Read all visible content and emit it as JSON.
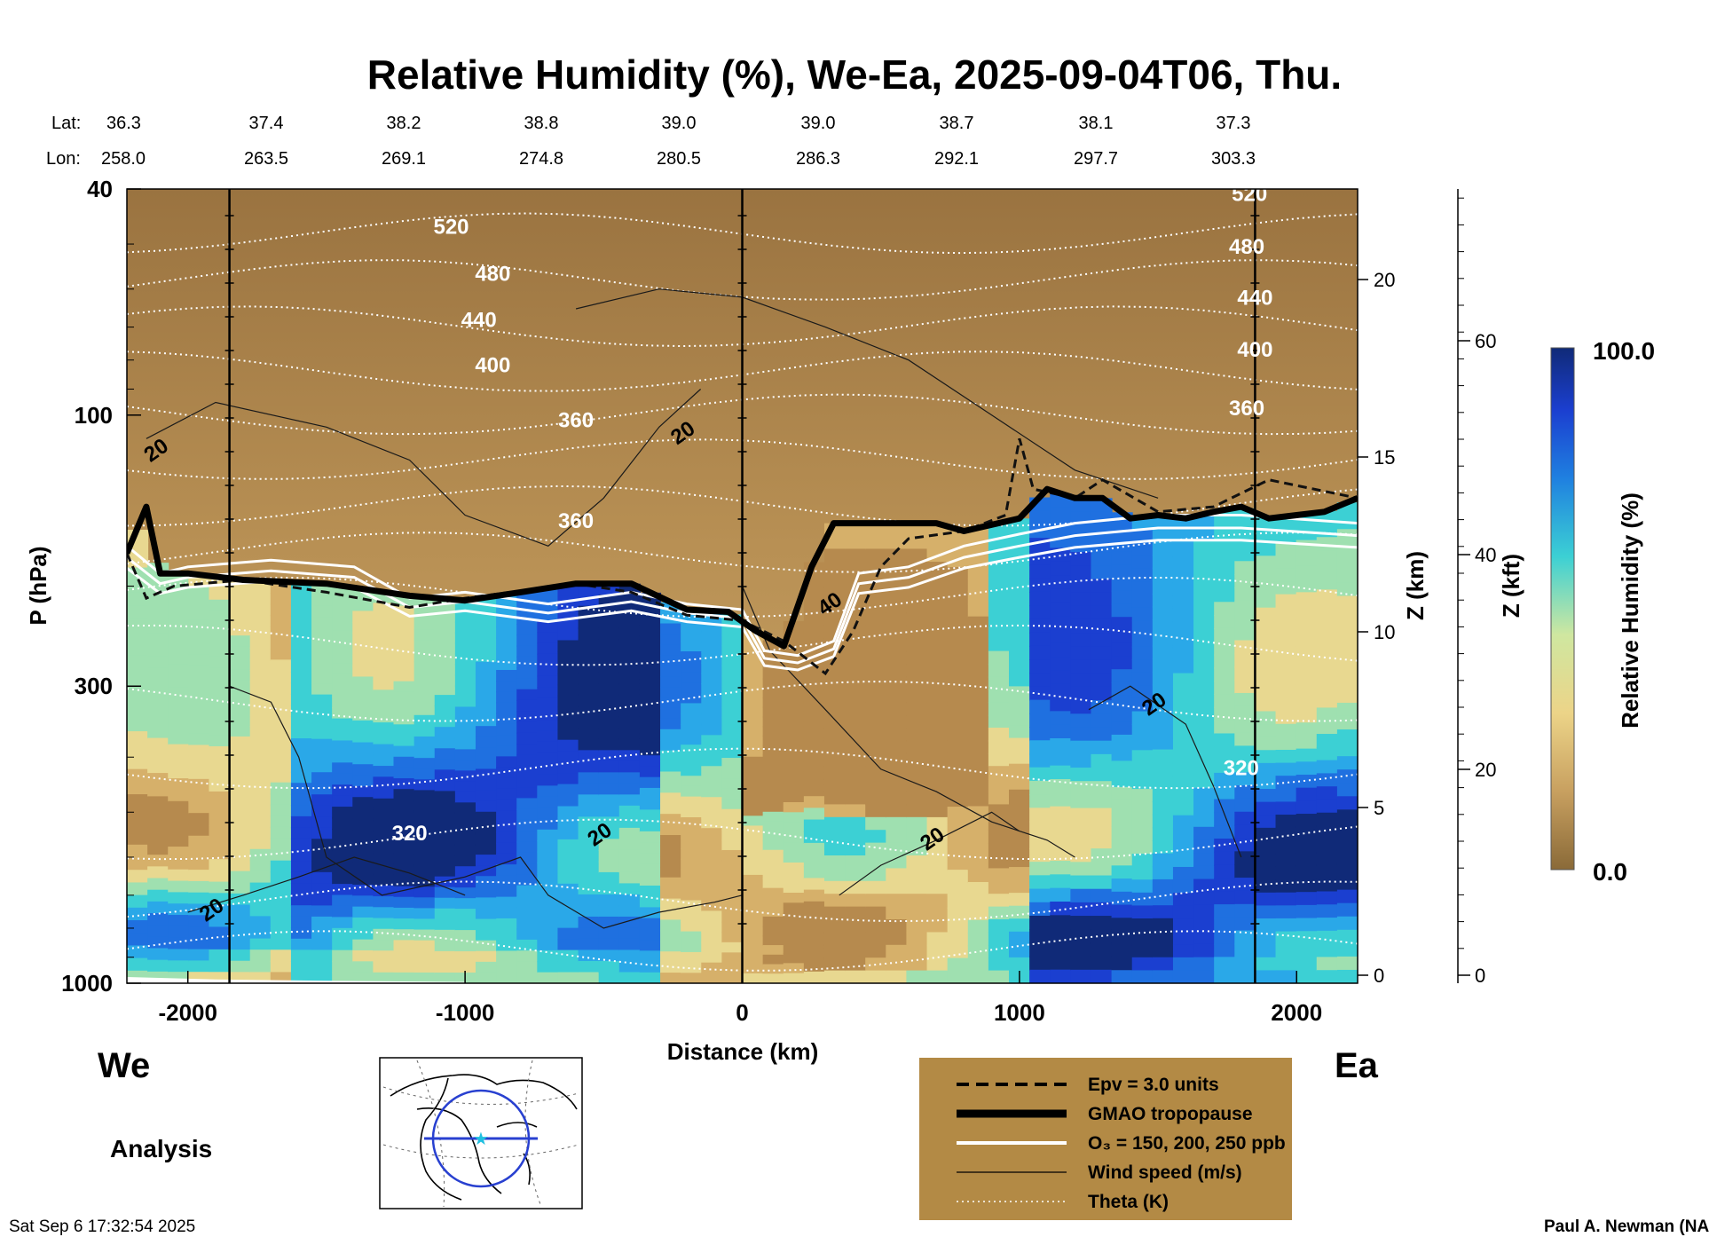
{
  "chart_data": {
    "type": "heatmap",
    "title": "Relative Humidity (%), We-Ea, 2025-09-04T06, Thu.",
    "xlabel": "Distance (km)",
    "ylabel": "P (hPa)",
    "xlim": [
      -2220,
      2220
    ],
    "ylim": [
      1000,
      40
    ],
    "yscale": "log",
    "x_ticks": [
      "-2000",
      "-1000",
      "0",
      "1000",
      "2000"
    ],
    "y_ticks": [
      "40",
      "100",
      "300",
      "1000"
    ],
    "z_km_label": "Z (km)",
    "z_km_ticks": [
      "0",
      "5",
      "10",
      "15",
      "20"
    ],
    "z_kft_label": "Z (kft)",
    "z_kft_ticks": [
      "0",
      "20",
      "40",
      "60"
    ],
    "lat_label": "Lat:",
    "lon_label": "Lon:",
    "lat": [
      "36.3",
      "37.4",
      "38.2",
      "38.8",
      "39.0",
      "39.0",
      "38.7",
      "38.1",
      "37.3"
    ],
    "lon": [
      "258.0",
      "263.5",
      "269.1",
      "274.8",
      "280.5",
      "286.3",
      "292.1",
      "297.7",
      "303.3"
    ],
    "colorbar": {
      "label": "Relative Humidity (%)",
      "max": "100.0",
      "min": "0.0"
    },
    "theta_labels": [
      "520",
      "480",
      "440",
      "400",
      "360",
      "320",
      "520",
      "480",
      "440",
      "400",
      "360",
      "320"
    ],
    "wind_labels": [
      "20",
      "20",
      "20",
      "40",
      "20",
      "20",
      "20"
    ],
    "legend": [
      {
        "style": "dashed",
        "text": "Epv = 3.0 units"
      },
      {
        "style": "thick",
        "text": "GMAO tropopause"
      },
      {
        "style": "white",
        "text": "O₃ = 150, 200, 250 ppb"
      },
      {
        "style": "thin",
        "text": "Wind speed (m/s)"
      },
      {
        "style": "dotted",
        "text": "Theta (K)"
      }
    ],
    "tropopause_hpa": {
      "x": [
        -2220,
        -2150,
        -2100,
        -2000,
        -1800,
        -1500,
        -1200,
        -1000,
        -800,
        -600,
        -400,
        -200,
        -50,
        50,
        150,
        250,
        330,
        500,
        700,
        800,
        1000,
        1100,
        1200,
        1300,
        1400,
        1500,
        1600,
        1700,
        1800,
        1900,
        2000,
        2100,
        2220
      ],
      "p": [
        175,
        145,
        190,
        190,
        195,
        198,
        208,
        212,
        205,
        198,
        198,
        220,
        222,
        240,
        255,
        185,
        155,
        155,
        155,
        160,
        152,
        135,
        140,
        140,
        152,
        150,
        152,
        148,
        145,
        152,
        150,
        148,
        140
      ]
    }
  },
  "left_labels": {
    "west": "We",
    "east": "Ea",
    "analysis": "Analysis"
  },
  "timestamp": "Sat Sep  6 17:32:54 2025",
  "credit": "Paul A. Newman (NASA"
}
